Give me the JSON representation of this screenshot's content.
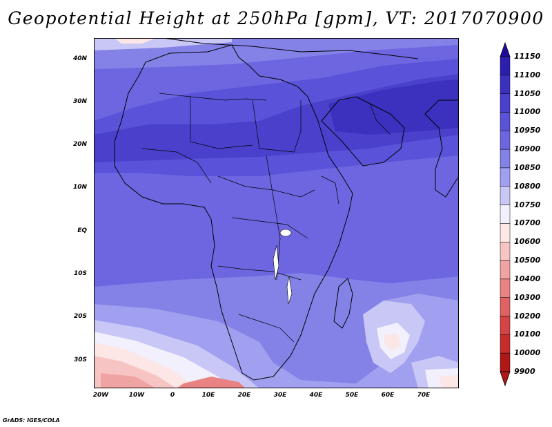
{
  "title": "Geopotential Height at 250hPa [gpm], VT: 2017070900",
  "credit": "GrADS: IGES/COLA",
  "lat_labels": [
    "40N",
    "30N",
    "20N",
    "10N",
    "EQ",
    "10S",
    "20S",
    "30S"
  ],
  "lon_labels": [
    "20W",
    "10W",
    "0",
    "10E",
    "20E",
    "30E",
    "40E",
    "50E",
    "60E",
    "70E"
  ],
  "colorbar": {
    "levels": [
      "11150",
      "11100",
      "11050",
      "11000",
      "10950",
      "10900",
      "10850",
      "10800",
      "10750",
      "10700",
      "10600",
      "10500",
      "10400",
      "10300",
      "10200",
      "10100",
      "10000",
      "9900"
    ],
    "colors": [
      "#1e0b9e",
      "#2c1fb0",
      "#3b31be",
      "#4a40cc",
      "#5a52d8",
      "#6d66e0",
      "#8481e7",
      "#a19fef",
      "#c9c7f6",
      "#f1f0fc",
      "#fce6e6",
      "#f7c4c4",
      "#f0a3a3",
      "#e98282",
      "#e06262",
      "#d44444",
      "#c52c2c",
      "#b01818"
    ]
  },
  "map": {
    "region": "Africa, Arabia and western India",
    "lat_range": [
      -37,
      45
    ],
    "lon_range": [
      -22,
      80
    ],
    "field": "geopotential height at 250 hPa (gpm)",
    "valid_time": "2017070900"
  }
}
